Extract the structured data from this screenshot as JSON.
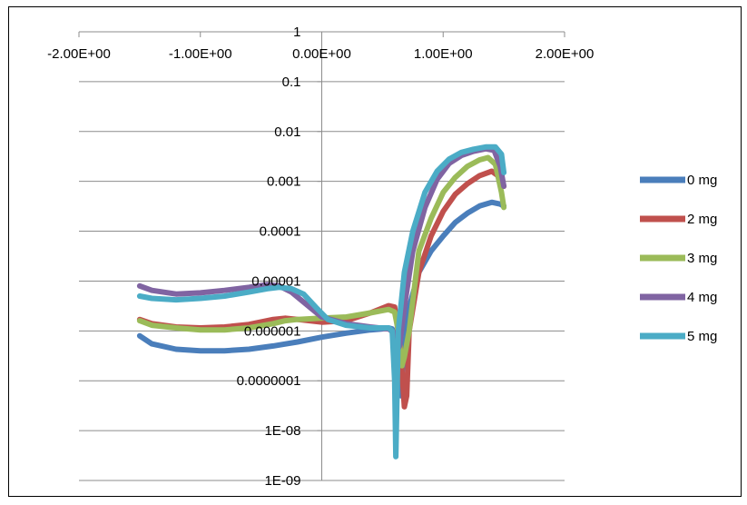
{
  "chart_data": {
    "type": "line",
    "title": "",
    "xlabel": "",
    "ylabel": "",
    "xlim": [
      -2,
      2
    ],
    "ylim": [
      1e-09,
      1
    ],
    "y_scale": "log",
    "grid": "horizontal",
    "legend_position": "right",
    "x_tick_labels": [
      "-2.00E+00",
      "-1.00E+00",
      "0.00E+00",
      "1.00E+00",
      "2.00E+00"
    ],
    "y_tick_labels": [
      "1",
      "0.1",
      "0.01",
      "0.001",
      "0.0001",
      "0.00001",
      "0.000001",
      "0.0000001",
      "1E-08",
      "1E-09"
    ],
    "y_tick_values": [
      1,
      0.1,
      0.01,
      0.001,
      0.0001,
      1e-05,
      1e-06,
      1e-07,
      1e-08,
      1e-09
    ],
    "x_tick_values": [
      -2,
      -1,
      0,
      1,
      2
    ],
    "series": [
      {
        "name": "0 mg",
        "color": "#4a7ebb",
        "points": [
          [
            -1.5,
            8e-07
          ],
          [
            -1.4,
            5.5e-07
          ],
          [
            -1.2,
            4.3e-07
          ],
          [
            -1.0,
            4e-07
          ],
          [
            -0.8,
            4e-07
          ],
          [
            -0.6,
            4.3e-07
          ],
          [
            -0.4,
            5e-07
          ],
          [
            -0.2,
            6e-07
          ],
          [
            0.0,
            7.5e-07
          ],
          [
            0.2,
            9e-07
          ],
          [
            0.4,
            1.05e-06
          ],
          [
            0.5,
            1.1e-06
          ],
          [
            0.55,
            1.15e-06
          ],
          [
            0.58,
            1.1e-06
          ],
          [
            0.6,
            8e-07
          ],
          [
            0.62,
            2e-07
          ],
          [
            0.65,
            5e-08
          ],
          [
            0.67,
            2.5e-07
          ],
          [
            0.72,
            3e-06
          ],
          [
            0.8,
            1.5e-05
          ],
          [
            0.9,
            4e-05
          ],
          [
            1.0,
            8e-05
          ],
          [
            1.1,
            0.00015
          ],
          [
            1.2,
            0.00023
          ],
          [
            1.3,
            0.00032
          ],
          [
            1.4,
            0.00038
          ],
          [
            1.47,
            0.00035
          ],
          [
            1.5,
            0.00032
          ]
        ]
      },
      {
        "name": "2 mg",
        "color": "#c0504d",
        "points": [
          [
            -1.5,
            1.7e-06
          ],
          [
            -1.4,
            1.4e-06
          ],
          [
            -1.2,
            1.2e-06
          ],
          [
            -1.0,
            1.15e-06
          ],
          [
            -0.8,
            1.2e-06
          ],
          [
            -0.6,
            1.35e-06
          ],
          [
            -0.4,
            1.7e-06
          ],
          [
            -0.3,
            1.8e-06
          ],
          [
            -0.2,
            1.7e-06
          ],
          [
            0.0,
            1.5e-06
          ],
          [
            0.2,
            1.6e-06
          ],
          [
            0.4,
            2.3e-06
          ],
          [
            0.55,
            3.2e-06
          ],
          [
            0.6,
            3e-06
          ],
          [
            0.62,
            1.5e-06
          ],
          [
            0.65,
            4e-07
          ],
          [
            0.68,
            3e-08
          ],
          [
            0.7,
            5e-08
          ],
          [
            0.72,
            1e-06
          ],
          [
            0.8,
            1.5e-05
          ],
          [
            0.9,
            8e-05
          ],
          [
            1.0,
            0.00025
          ],
          [
            1.1,
            0.00055
          ],
          [
            1.2,
            0.0009
          ],
          [
            1.3,
            0.0013
          ],
          [
            1.4,
            0.0016
          ],
          [
            1.45,
            0.0013
          ],
          [
            1.5,
            0.0008
          ]
        ]
      },
      {
        "name": "3 mg",
        "color": "#9bbb59",
        "points": [
          [
            -1.5,
            1.6e-06
          ],
          [
            -1.4,
            1.3e-06
          ],
          [
            -1.2,
            1.15e-06
          ],
          [
            -1.0,
            1.05e-06
          ],
          [
            -0.8,
            1.05e-06
          ],
          [
            -0.6,
            1.15e-06
          ],
          [
            -0.4,
            1.4e-06
          ],
          [
            -0.3,
            1.6e-06
          ],
          [
            -0.2,
            1.7e-06
          ],
          [
            0.0,
            1.8e-06
          ],
          [
            0.2,
            1.9e-06
          ],
          [
            0.4,
            2.3e-06
          ],
          [
            0.55,
            2.7e-06
          ],
          [
            0.6,
            2.4e-06
          ],
          [
            0.63,
            1e-06
          ],
          [
            0.66,
            2e-07
          ],
          [
            0.68,
            3e-07
          ],
          [
            0.72,
            1e-06
          ],
          [
            0.8,
            4e-05
          ],
          [
            0.9,
            0.00018
          ],
          [
            1.0,
            0.0006
          ],
          [
            1.1,
            0.0012
          ],
          [
            1.2,
            0.002
          ],
          [
            1.3,
            0.0027
          ],
          [
            1.37,
            0.003
          ],
          [
            1.43,
            0.0022
          ],
          [
            1.48,
            0.0006
          ],
          [
            1.5,
            0.0003
          ]
        ]
      },
      {
        "name": "4 mg",
        "color": "#8064a2",
        "points": [
          [
            -1.5,
            8e-06
          ],
          [
            -1.4,
            6.5e-06
          ],
          [
            -1.2,
            5.5e-06
          ],
          [
            -1.0,
            5.8e-06
          ],
          [
            -0.8,
            6.5e-06
          ],
          [
            -0.6,
            7.5e-06
          ],
          [
            -0.45,
            8.5e-06
          ],
          [
            -0.35,
            8e-06
          ],
          [
            -0.25,
            6e-06
          ],
          [
            -0.1,
            3e-06
          ],
          [
            0.0,
            1.9e-06
          ],
          [
            0.2,
            1.4e-06
          ],
          [
            0.4,
            1.2e-06
          ],
          [
            0.55,
            1.1e-06
          ],
          [
            0.6,
            9e-07
          ],
          [
            0.62,
            4e-07
          ],
          [
            0.64,
            5e-07
          ],
          [
            0.68,
            3e-06
          ],
          [
            0.75,
            4e-05
          ],
          [
            0.85,
            0.0003
          ],
          [
            0.95,
            0.0011
          ],
          [
            1.05,
            0.0023
          ],
          [
            1.15,
            0.0033
          ],
          [
            1.25,
            0.004
          ],
          [
            1.35,
            0.0045
          ],
          [
            1.42,
            0.0042
          ],
          [
            1.47,
            0.002
          ],
          [
            1.5,
            0.0008
          ]
        ]
      },
      {
        "name": "5 mg",
        "color": "#4bacc6",
        "points": [
          [
            -1.5,
            5e-06
          ],
          [
            -1.4,
            4.5e-06
          ],
          [
            -1.2,
            4.2e-06
          ],
          [
            -1.0,
            4.5e-06
          ],
          [
            -0.8,
            5e-06
          ],
          [
            -0.6,
            6e-06
          ],
          [
            -0.45,
            7e-06
          ],
          [
            -0.35,
            7.5e-06
          ],
          [
            -0.25,
            7e-06
          ],
          [
            -0.15,
            5.5e-06
          ],
          [
            -0.05,
            3e-06
          ],
          [
            0.05,
            1.7e-06
          ],
          [
            0.2,
            1.3e-06
          ],
          [
            0.4,
            1.15e-06
          ],
          [
            0.55,
            1.15e-06
          ],
          [
            0.58,
            1e-06
          ],
          [
            0.6,
            1e-07
          ],
          [
            0.61,
            3e-09
          ],
          [
            0.63,
            1e-06
          ],
          [
            0.68,
            1.5e-05
          ],
          [
            0.75,
            0.0001
          ],
          [
            0.85,
            0.0006
          ],
          [
            0.95,
            0.0016
          ],
          [
            1.05,
            0.0028
          ],
          [
            1.15,
            0.0038
          ],
          [
            1.25,
            0.0044
          ],
          [
            1.35,
            0.0049
          ],
          [
            1.43,
            0.0049
          ],
          [
            1.48,
            0.0035
          ],
          [
            1.5,
            0.0015
          ]
        ]
      }
    ]
  }
}
